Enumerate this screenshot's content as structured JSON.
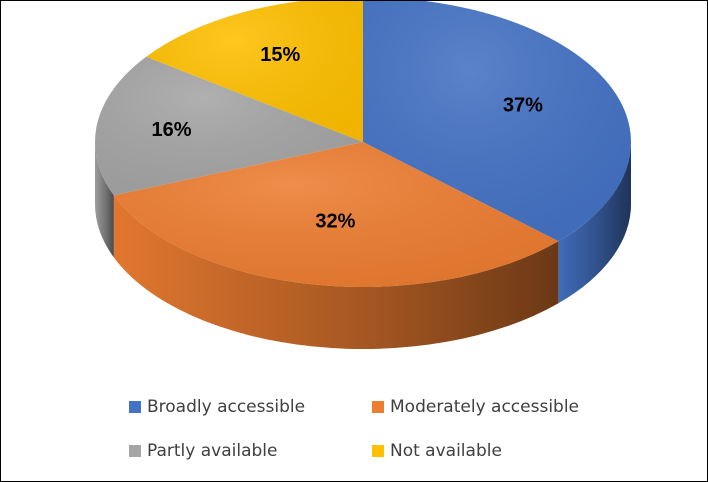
{
  "chart_data": {
    "type": "pie",
    "style": "3d",
    "categories": [
      "Broadly accessible",
      "Moderately accessible",
      "Partly available",
      "Not available"
    ],
    "values": [
      37,
      32,
      16,
      15
    ],
    "labels": [
      "37%",
      "32%",
      "16%",
      "15%"
    ],
    "colors": [
      "#4472C4",
      "#ED7D31",
      "#A5A5A5",
      "#FFC000"
    ],
    "legend_position": "bottom",
    "title": ""
  }
}
